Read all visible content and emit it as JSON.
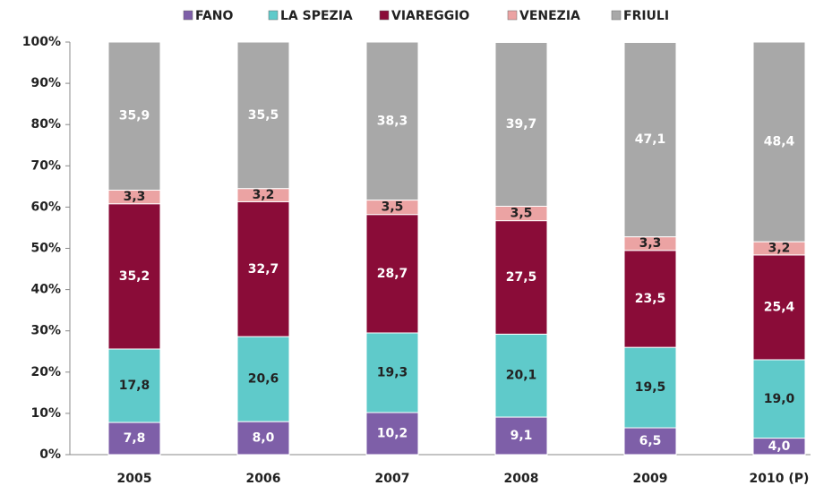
{
  "chart_data": {
    "type": "stacked_bar",
    "categories": [
      "2005",
      "2006",
      "2007",
      "2008",
      "2009",
      "2010 (P)"
    ],
    "series": [
      {
        "name": "FANO",
        "color": "#7e5fa8",
        "values": [
          7.8,
          8.0,
          10.2,
          9.1,
          6.5,
          4.0
        ],
        "value_labels": [
          "7,8",
          "8,0",
          "10,2",
          "9,1",
          "6,5",
          "4,0"
        ]
      },
      {
        "name": "LA SPEZIA",
        "color": "#5fcaca",
        "values": [
          17.8,
          20.6,
          19.3,
          20.1,
          19.5,
          19.0
        ],
        "value_labels": [
          "17,8",
          "20,6",
          "19,3",
          "20,1",
          "19,5",
          "19,0"
        ]
      },
      {
        "name": "VIAREGGIO",
        "color": "#8a0c38",
        "values": [
          35.2,
          32.7,
          28.7,
          27.5,
          23.5,
          25.4
        ],
        "value_labels": [
          "35,2",
          "32,7",
          "28,7",
          "27,5",
          "23,5",
          "25,4"
        ]
      },
      {
        "name": "VENEZIA",
        "color": "#eba3a3",
        "values": [
          3.3,
          3.2,
          3.5,
          3.5,
          3.3,
          3.2
        ],
        "value_labels": [
          "3,3",
          "3,2",
          "3,5",
          "3,5",
          "3,3",
          "3,2"
        ]
      },
      {
        "name": "FRIULI",
        "color": "#a8a8a8",
        "values": [
          35.9,
          35.5,
          38.3,
          39.7,
          47.1,
          48.4
        ],
        "value_labels": [
          "35,9",
          "35,5",
          "38,3",
          "39,7",
          "47,1",
          "48,4"
        ]
      }
    ],
    "ylim": [
      0,
      100
    ],
    "yticks": [
      {
        "value": 0,
        "label": "0%"
      },
      {
        "value": 10,
        "label": "10%"
      },
      {
        "value": 20,
        "label": "20%"
      },
      {
        "value": 30,
        "label": "30%"
      },
      {
        "value": 40,
        "label": "40%"
      },
      {
        "value": 50,
        "label": "50%"
      },
      {
        "value": 60,
        "label": "60%"
      },
      {
        "value": 70,
        "label": "70%"
      },
      {
        "value": 80,
        "label": "80%"
      },
      {
        "value": 90,
        "label": "90%"
      },
      {
        "value": 100,
        "label": "100%"
      }
    ],
    "legend": "top"
  }
}
